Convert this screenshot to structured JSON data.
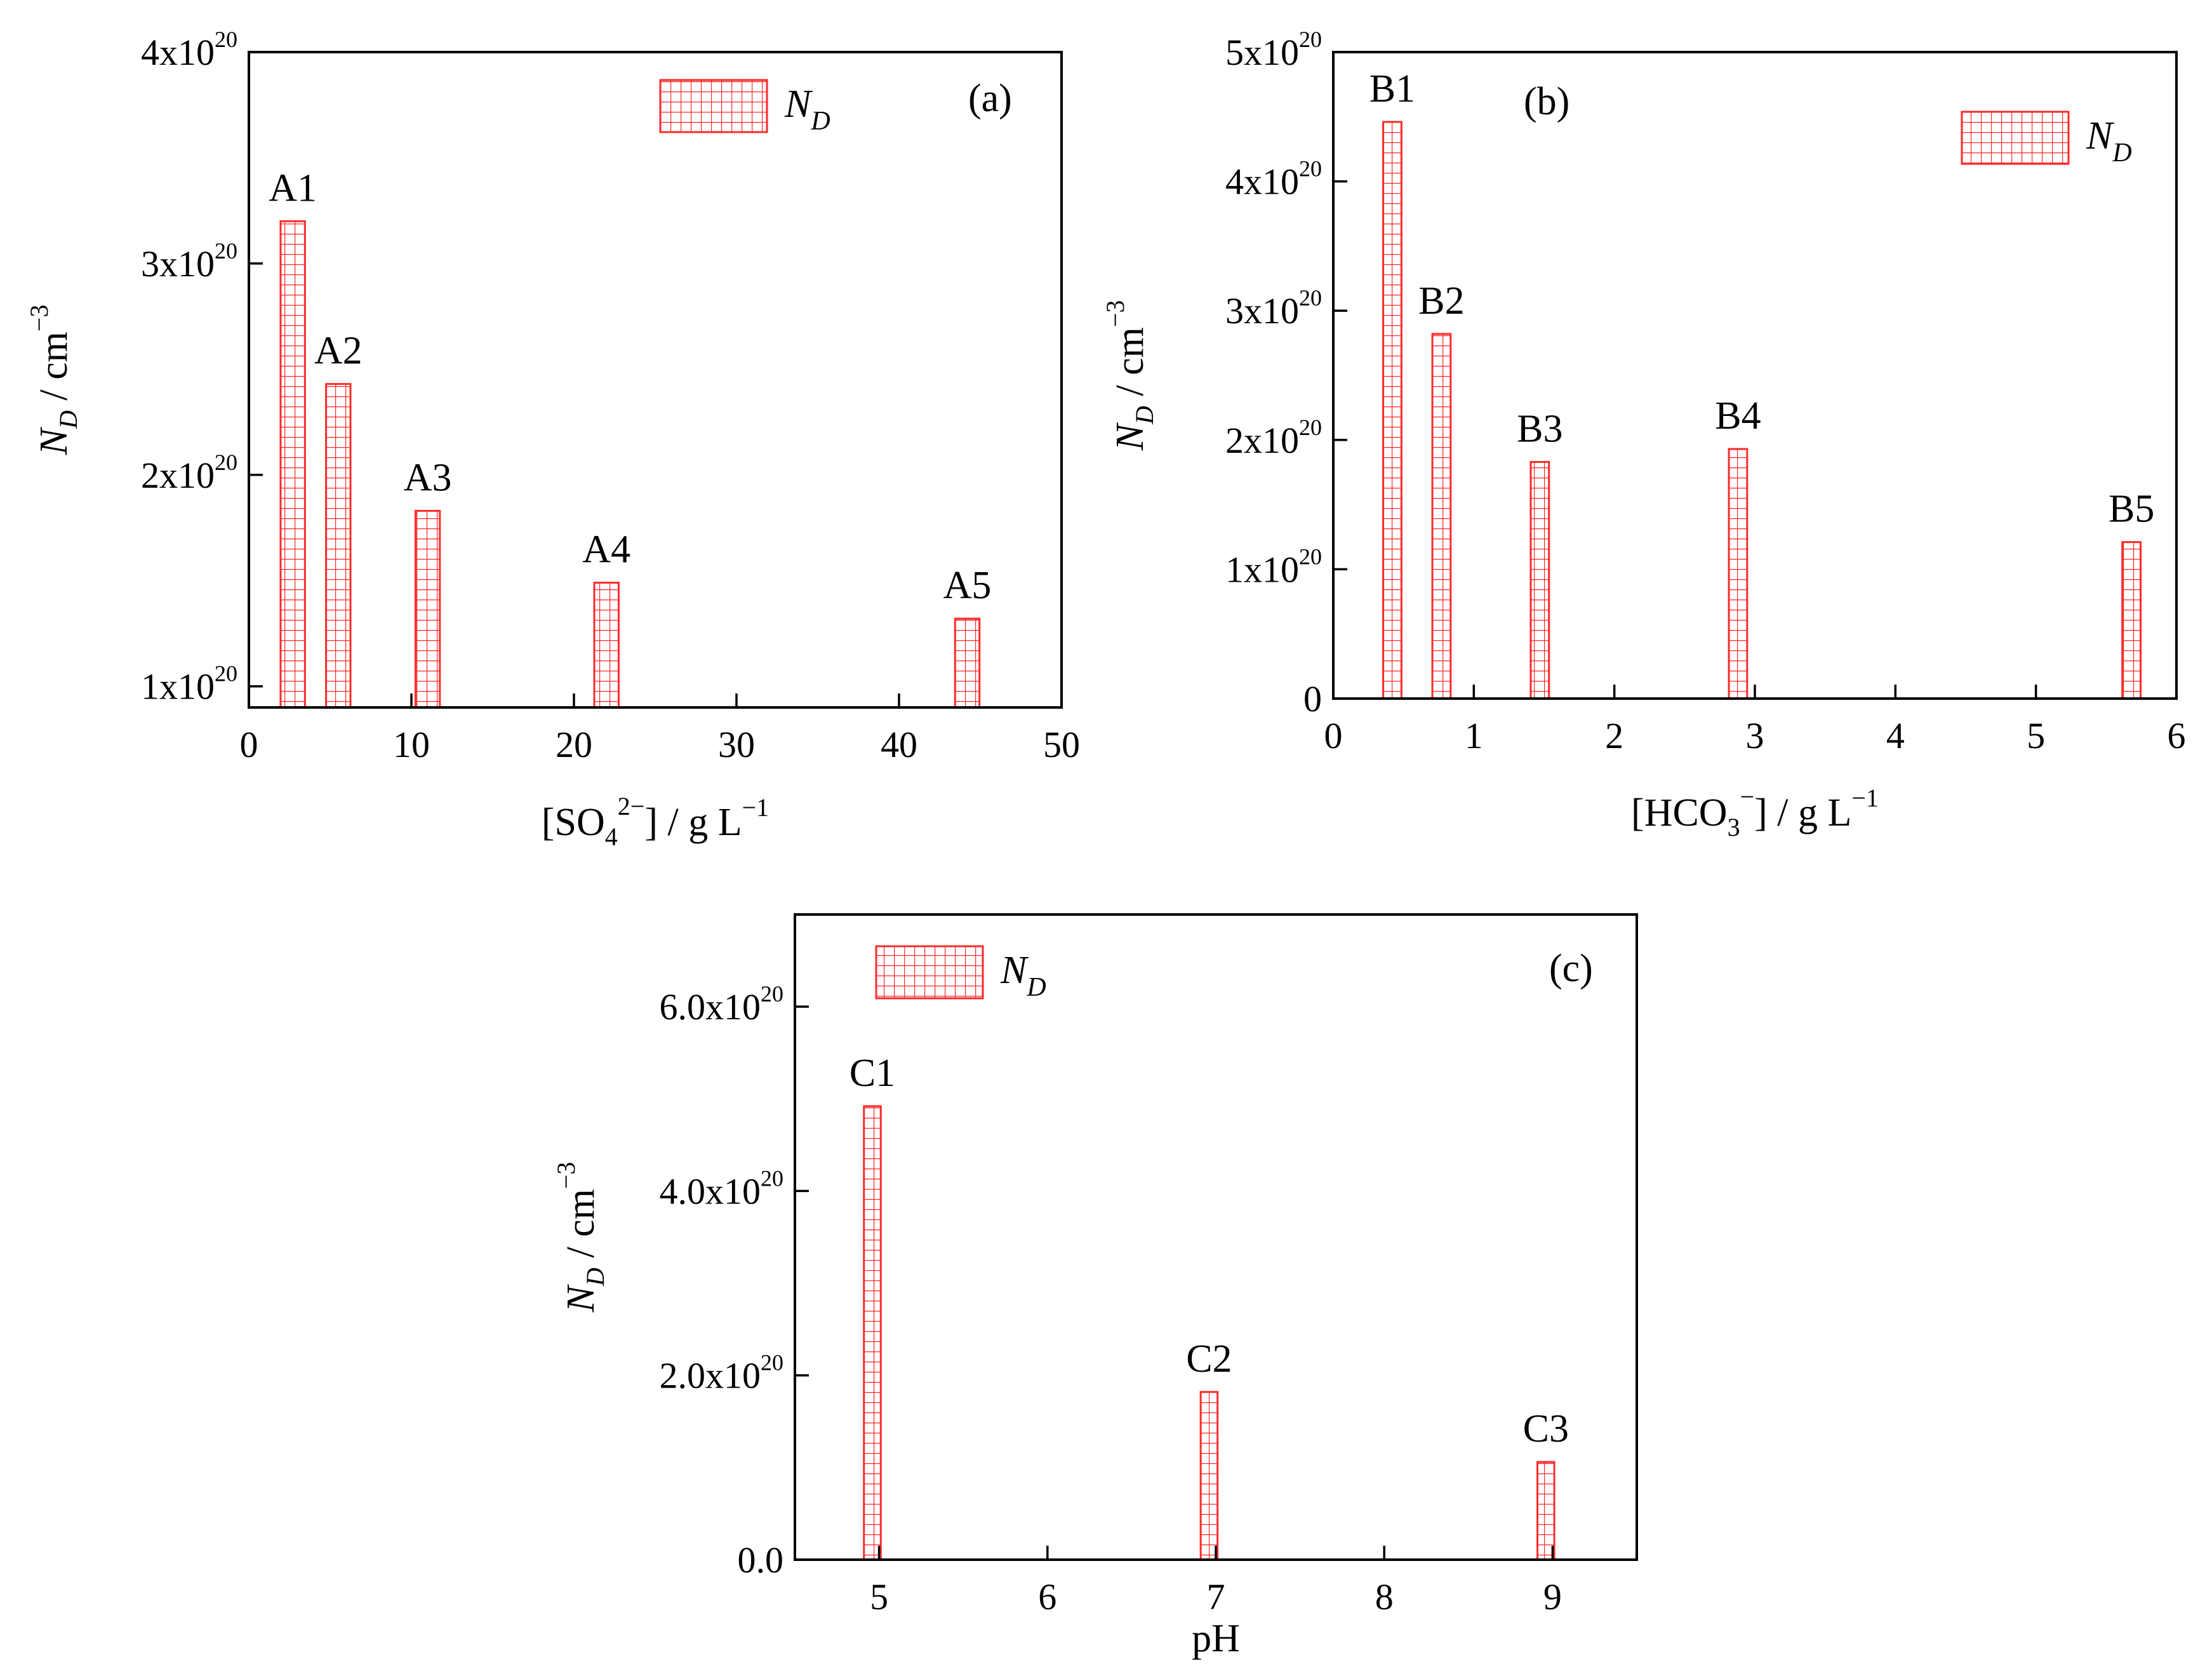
{
  "series_name": "N",
  "series_subscript": "D",
  "colors": {
    "bar": "#ff2a2a",
    "axis": "#000000"
  },
  "chart_data": [
    {
      "type": "bar",
      "panel": "(a)",
      "legend_position": "top-right",
      "x": [
        2.7,
        5.5,
        11,
        22,
        44.2
      ],
      "values": [
        3.2e+20,
        2.43e+20,
        1.83e+20,
        1.49e+20,
        1.32e+20
      ],
      "bar_width": 1.5,
      "labels": [
        "A1",
        "A2",
        "A3",
        "A4",
        "A5"
      ],
      "xlim": [
        0,
        50
      ],
      "ylim": [
        9e+19,
        4e+20
      ],
      "xticks": [
        0,
        10,
        20,
        30,
        40,
        50
      ],
      "xtick_labels": [
        "0",
        "10",
        "20",
        "30",
        "40",
        "50"
      ],
      "yticks": [
        1e+20,
        2e+20,
        3e+20,
        4e+20
      ],
      "ytick_labels": [
        [
          "1x10",
          "20"
        ],
        [
          "2x10",
          "20"
        ],
        [
          "3x10",
          "20"
        ],
        [
          "4x10",
          "20"
        ]
      ],
      "xlabel": {
        "pre": "[SO",
        "sub": "4",
        "sup": "2−",
        "post": "] / g L",
        "post_sup": "−1"
      },
      "ylabel": {
        "main": "N",
        "sub": "D",
        "tail": " / cm",
        "sup": "−3"
      }
    },
    {
      "type": "bar",
      "panel": "(b)",
      "legend_position": "top-right",
      "x": [
        0.42,
        0.77,
        1.47,
        2.88,
        5.68
      ],
      "values": [
        4.46e+20,
        2.82e+20,
        1.83e+20,
        1.93e+20,
        1.21e+20
      ],
      "bar_width": 0.13,
      "labels": [
        "B1",
        "B2",
        "B3",
        "B4",
        "B5"
      ],
      "xlim": [
        0,
        6
      ],
      "ylim": [
        0,
        5e+20
      ],
      "xticks": [
        0,
        1,
        2,
        3,
        4,
        5,
        6
      ],
      "xtick_labels": [
        "0",
        "1",
        "2",
        "3",
        "4",
        "5",
        "6"
      ],
      "yticks": [
        0,
        1e+20,
        2e+20,
        3e+20,
        4e+20,
        5e+20
      ],
      "ytick_labels": [
        [
          "0",
          ""
        ],
        [
          "1x10",
          "20"
        ],
        [
          "2x10",
          "20"
        ],
        [
          "3x10",
          "20"
        ],
        [
          "4x10",
          "20"
        ],
        [
          "5x10",
          "20"
        ]
      ],
      "xlabel": {
        "pre": "[HCO",
        "sub": "3",
        "sup": "−",
        "post": "] / g L",
        "post_sup": "−1"
      },
      "ylabel": {
        "main": "N",
        "sub": "D",
        "tail": " / cm",
        "sup": "−3"
      }
    },
    {
      "type": "bar",
      "panel": "(c)",
      "legend_position": "top-left",
      "x": [
        4.96,
        6.96,
        8.96
      ],
      "values": [
        4.92e+20,
        1.82e+20,
        1.06e+20
      ],
      "bar_width": 0.1,
      "labels": [
        "C1",
        "C2",
        "C3"
      ],
      "xlim": [
        4.5,
        9.5
      ],
      "ylim": [
        0,
        7e+20
      ],
      "xticks": [
        5,
        6,
        7,
        8,
        9
      ],
      "xtick_labels": [
        "5",
        "6",
        "7",
        "8",
        "9"
      ],
      "yticks": [
        0,
        2e+20,
        4e+20,
        6e+20
      ],
      "ytick_labels": [
        [
          "0.0",
          ""
        ],
        [
          "2.0x10",
          "20"
        ],
        [
          "4.0x10",
          "20"
        ],
        [
          "6.0x10",
          "20"
        ]
      ],
      "xlabel": {
        "pre": "pH",
        "sub": "",
        "sup": "",
        "post": "",
        "post_sup": ""
      },
      "ylabel": {
        "main": "N",
        "sub": "D",
        "tail": " / cm",
        "sup": "−3"
      }
    }
  ]
}
